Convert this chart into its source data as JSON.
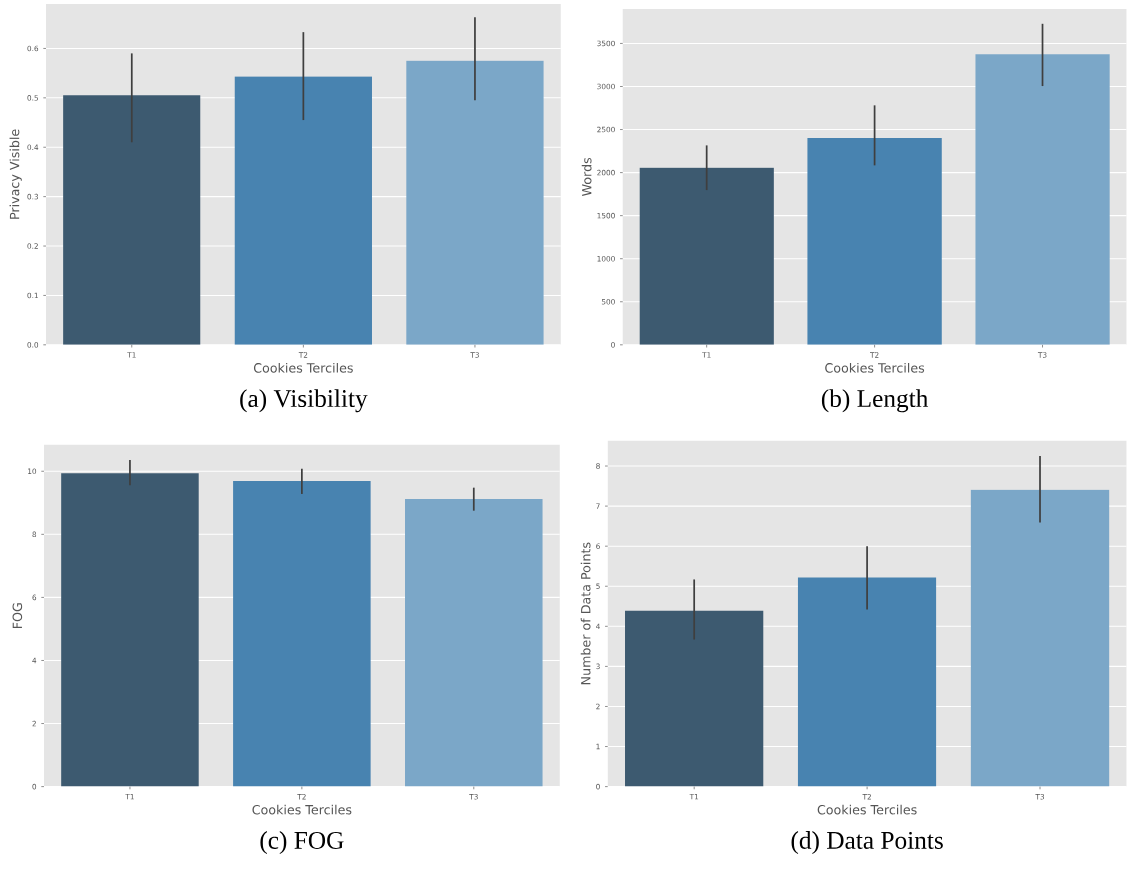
{
  "chart_data": [
    {
      "type": "bar",
      "title": "(a) Visibility",
      "xlabel": "Cookies Terciles",
      "ylabel": "Privacy Visible",
      "categories": [
        "T1",
        "T2",
        "T3"
      ],
      "values": [
        0.505,
        0.543,
        0.575
      ],
      "colors": [
        "#3d5a70",
        "#4883b0",
        "#7ba7c8"
      ],
      "errors": [
        [
          0.41,
          0.59
        ],
        [
          0.455,
          0.633
        ],
        [
          0.495,
          0.663
        ]
      ],
      "ylim": [
        0,
        0.69
      ],
      "yticks": [
        {
          "value": 0,
          "label": "0.0"
        },
        0.1,
        0.2,
        0.3,
        0.4,
        0.5,
        0.6
      ],
      "grid": "y"
    },
    {
      "type": "bar",
      "title": "(b) Length",
      "xlabel": "Cookies Terciles",
      "ylabel": "Words",
      "categories": [
        "T1",
        "T2",
        "T3"
      ],
      "values": [
        2057,
        2403,
        3375
      ],
      "colors": [
        "#3d5a70",
        "#4883b0",
        "#7ba7c8"
      ],
      "errors": [
        [
          1797,
          2316
        ],
        [
          2084,
          2781
        ],
        [
          3005,
          3728
        ]
      ],
      "ylim": [
        0,
        3900
      ],
      "yticks": [
        0,
        500,
        1000,
        1500,
        2000,
        2500,
        3000,
        3500
      ],
      "grid": "y"
    },
    {
      "type": "bar",
      "title": "(c) FOG",
      "xlabel": "Cookies Terciles",
      "ylabel": "FOG",
      "categories": [
        "T1",
        "T2",
        "T3"
      ],
      "values": [
        9.94,
        9.69,
        9.12
      ],
      "colors": [
        "#3d5a70",
        "#4883b0",
        "#7ba7c8"
      ],
      "errors": [
        [
          9.56,
          10.36
        ],
        [
          9.28,
          10.08
        ],
        [
          8.75,
          9.48
        ]
      ],
      "ylim": [
        0,
        10.84
      ],
      "yticks": [
        0,
        2,
        4,
        6,
        8,
        10
      ],
      "grid": "y"
    },
    {
      "type": "bar",
      "title": "(d) Data Points",
      "xlabel": "Cookies Terciles",
      "ylabel": "Number of Data Points",
      "categories": [
        "T1",
        "T2",
        "T3"
      ],
      "values": [
        4.39,
        5.22,
        7.41
      ],
      "colors": [
        "#3d5a70",
        "#4883b0",
        "#7ba7c8"
      ],
      "errors": [
        [
          3.67,
          5.17
        ],
        [
          4.42,
          6.0
        ],
        [
          6.59,
          8.25
        ]
      ],
      "ylim": [
        0,
        8.63
      ],
      "yticks": [
        0,
        1,
        2,
        3,
        4,
        5,
        6,
        7,
        8
      ],
      "grid": "y"
    }
  ]
}
